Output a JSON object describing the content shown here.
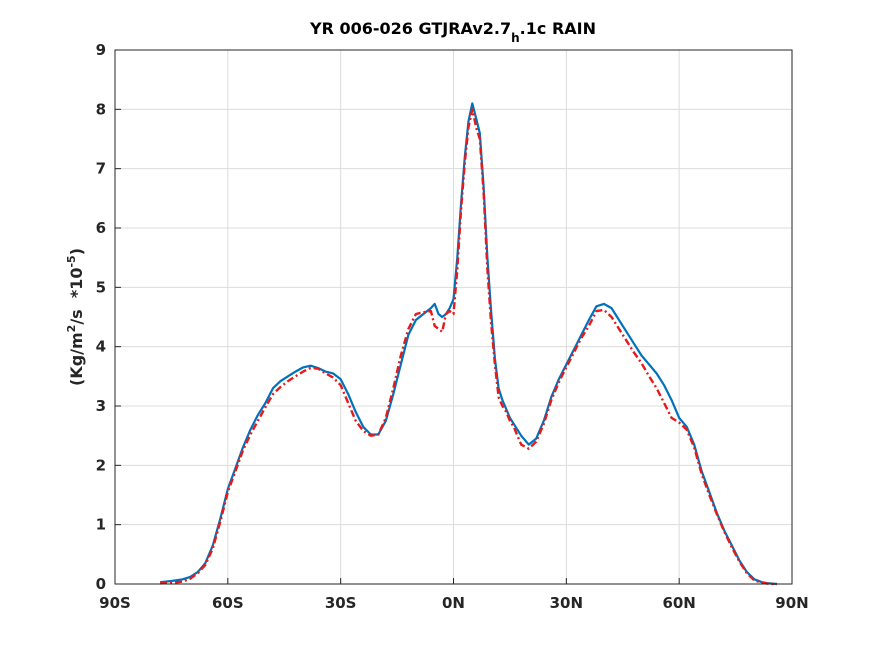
{
  "chart_data": {
    "type": "line",
    "title": {
      "main": "YR 006-026 GTJRAv2.7",
      "subscript": "h",
      "rest": ".1c RAIN"
    },
    "ylabel": {
      "prefix": "(Kg/m",
      "sup1": "2",
      "mid": "/s  *10",
      "sup2": "-5",
      "suffix": ")"
    },
    "xlim": [
      -90,
      90
    ],
    "ylim": [
      0,
      9
    ],
    "xticks": [
      {
        "value": -90,
        "label": "90S"
      },
      {
        "value": -60,
        "label": "60S"
      },
      {
        "value": -30,
        "label": "30S"
      },
      {
        "value": 0,
        "label": "0N"
      },
      {
        "value": 30,
        "label": "30N"
      },
      {
        "value": 60,
        "label": "60N"
      },
      {
        "value": 90,
        "label": "90N"
      }
    ],
    "yticks": [
      0,
      1,
      2,
      3,
      4,
      5,
      6,
      7,
      8,
      9
    ],
    "grid": true,
    "series": [
      {
        "color": "#0072BD",
        "style": "solid",
        "x": [
          -78,
          -75,
          -72,
          -70,
          -68,
          -66,
          -64,
          -62,
          -60,
          -58,
          -56,
          -54,
          -52,
          -50,
          -48,
          -46,
          -44,
          -42,
          -40,
          -38,
          -36,
          -34,
          -32,
          -30,
          -28,
          -26,
          -24,
          -22,
          -20,
          -18,
          -16,
          -14,
          -12,
          -10,
          -8,
          -6,
          -5,
          -4,
          -3,
          -2,
          -1,
          0,
          1,
          2,
          3,
          4,
          5,
          6,
          7,
          8,
          9,
          10,
          11,
          12,
          13,
          14,
          15,
          16,
          18,
          20,
          22,
          24,
          26,
          28,
          30,
          32,
          34,
          36,
          38,
          40,
          42,
          44,
          46,
          48,
          50,
          52,
          54,
          56,
          58,
          60,
          62,
          64,
          66,
          68,
          70,
          72,
          74,
          76,
          78,
          80,
          82,
          84,
          86
        ],
        "y": [
          0.03,
          0.05,
          0.08,
          0.12,
          0.2,
          0.35,
          0.65,
          1.1,
          1.6,
          1.95,
          2.3,
          2.6,
          2.85,
          3.05,
          3.3,
          3.42,
          3.5,
          3.58,
          3.65,
          3.68,
          3.64,
          3.58,
          3.55,
          3.45,
          3.2,
          2.9,
          2.65,
          2.52,
          2.52,
          2.75,
          3.2,
          3.7,
          4.2,
          4.45,
          4.55,
          4.65,
          4.72,
          4.55,
          4.5,
          4.55,
          4.65,
          4.8,
          5.5,
          6.4,
          7.2,
          7.8,
          8.1,
          7.85,
          7.6,
          6.7,
          5.5,
          4.6,
          3.8,
          3.3,
          3.1,
          2.95,
          2.8,
          2.7,
          2.5,
          2.35,
          2.45,
          2.75,
          3.15,
          3.45,
          3.7,
          3.95,
          4.2,
          4.45,
          4.68,
          4.72,
          4.65,
          4.45,
          4.25,
          4.05,
          3.85,
          3.7,
          3.55,
          3.35,
          3.1,
          2.8,
          2.65,
          2.35,
          1.9,
          1.55,
          1.2,
          0.9,
          0.65,
          0.4,
          0.2,
          0.08,
          0.03,
          0.01,
          0.0
        ]
      },
      {
        "color": "#E41A1C",
        "style": "dash-dot",
        "x": [
          -78,
          -75,
          -72,
          -70,
          -68,
          -66,
          -64,
          -62,
          -60,
          -58,
          -56,
          -54,
          -52,
          -50,
          -48,
          -46,
          -44,
          -42,
          -40,
          -38,
          -36,
          -34,
          -32,
          -30,
          -28,
          -26,
          -24,
          -22,
          -20,
          -18,
          -16,
          -14,
          -12,
          -10,
          -8,
          -6,
          -5,
          -4,
          -3,
          -2,
          -1,
          0,
          1,
          2,
          3,
          4,
          5,
          6,
          7,
          8,
          9,
          10,
          11,
          12,
          13,
          14,
          15,
          16,
          18,
          20,
          22,
          24,
          26,
          28,
          30,
          32,
          34,
          36,
          38,
          40,
          42,
          44,
          46,
          48,
          50,
          52,
          54,
          56,
          58,
          60,
          62,
          64,
          66,
          68,
          70,
          72,
          74,
          76,
          78,
          80,
          82,
          84,
          86
        ],
        "y": [
          0.01,
          0.02,
          0.04,
          0.09,
          0.18,
          0.32,
          0.6,
          1.05,
          1.55,
          1.9,
          2.25,
          2.52,
          2.75,
          2.98,
          3.2,
          3.32,
          3.42,
          3.5,
          3.58,
          3.64,
          3.63,
          3.55,
          3.48,
          3.35,
          3.05,
          2.75,
          2.58,
          2.5,
          2.52,
          2.8,
          3.3,
          3.85,
          4.3,
          4.55,
          4.58,
          4.6,
          4.35,
          4.3,
          4.25,
          4.55,
          4.6,
          4.55,
          5.3,
          6.3,
          7.1,
          7.7,
          8.0,
          7.7,
          7.5,
          6.6,
          5.3,
          4.4,
          3.7,
          3.15,
          3.0,
          2.9,
          2.75,
          2.65,
          2.35,
          2.28,
          2.4,
          2.7,
          3.1,
          3.4,
          3.65,
          3.9,
          4.15,
          4.35,
          4.6,
          4.62,
          4.5,
          4.3,
          4.1,
          3.9,
          3.72,
          3.5,
          3.3,
          3.05,
          2.8,
          2.72,
          2.6,
          2.3,
          1.85,
          1.5,
          1.18,
          0.88,
          0.62,
          0.38,
          0.18,
          0.06,
          0.02,
          0.0,
          0.0
        ]
      }
    ]
  }
}
